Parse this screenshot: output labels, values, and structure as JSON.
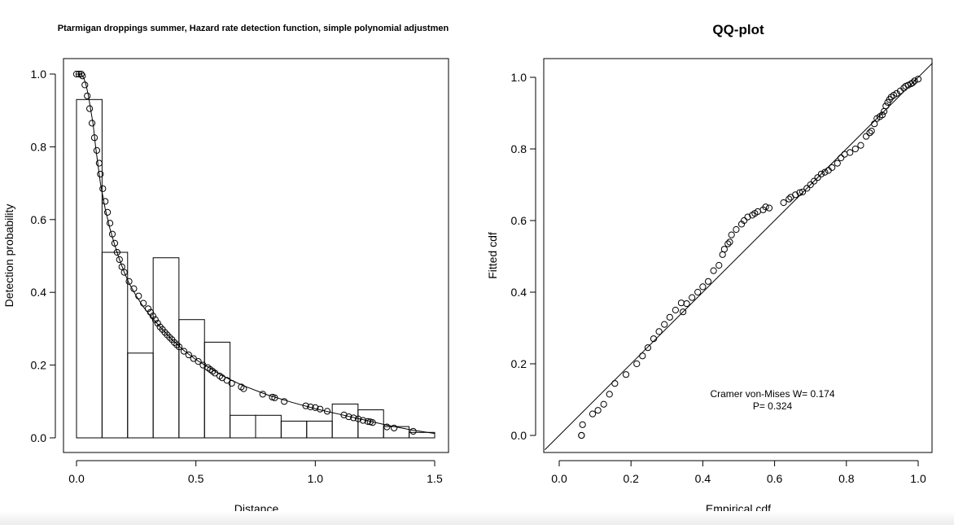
{
  "chart_data": [
    {
      "type": "bar",
      "title": "Ptarmigan droppings summer, Hazard rate detection function, simple polynomial adjustmen",
      "xlabel": "Distance",
      "ylabel": "Detection probability",
      "xlim": [
        0,
        1.5
      ],
      "ylim": [
        0,
        1.0
      ],
      "xticks": [
        "0.0",
        "0.5",
        "1.0",
        "1.5"
      ],
      "yticks": [
        "0.0",
        "0.2",
        "0.4",
        "0.6",
        "0.8",
        "1.0"
      ],
      "grid": false,
      "bins": [
        {
          "from": 0.0,
          "to": 0.107,
          "value": 0.93
        },
        {
          "from": 0.107,
          "to": 0.214,
          "value": 0.51
        },
        {
          "from": 0.214,
          "to": 0.321,
          "value": 0.233
        },
        {
          "from": 0.321,
          "to": 0.429,
          "value": 0.495
        },
        {
          "from": 0.429,
          "to": 0.536,
          "value": 0.325
        },
        {
          "from": 0.536,
          "to": 0.643,
          "value": 0.263
        },
        {
          "from": 0.643,
          "to": 0.75,
          "value": 0.062
        },
        {
          "from": 0.75,
          "to": 0.857,
          "value": 0.062
        },
        {
          "from": 0.857,
          "to": 0.964,
          "value": 0.046
        },
        {
          "from": 0.964,
          "to": 1.071,
          "value": 0.046
        },
        {
          "from": 1.071,
          "to": 1.179,
          "value": 0.093
        },
        {
          "from": 1.179,
          "to": 1.286,
          "value": 0.077
        },
        {
          "from": 1.286,
          "to": 1.393,
          "value": 0.031
        },
        {
          "from": 1.393,
          "to": 1.5,
          "value": 0.015
        }
      ],
      "fitted_curve": {
        "x": [
          0,
          0.02,
          0.03,
          0.04,
          0.05,
          0.06,
          0.07,
          0.08,
          0.09,
          0.1,
          0.12,
          0.14,
          0.16,
          0.18,
          0.2,
          0.22,
          0.25,
          0.28,
          0.31,
          0.35,
          0.4,
          0.45,
          0.5,
          0.55,
          0.6,
          0.65,
          0.7,
          0.8,
          0.9,
          1.0,
          1.1,
          1.2,
          1.3,
          1.4,
          1.5
        ],
        "y": [
          1.0,
          1.0,
          0.99,
          0.97,
          0.94,
          0.9,
          0.86,
          0.8,
          0.75,
          0.7,
          0.63,
          0.575,
          0.53,
          0.49,
          0.455,
          0.425,
          0.39,
          0.36,
          0.335,
          0.305,
          0.27,
          0.24,
          0.215,
          0.195,
          0.175,
          0.158,
          0.143,
          0.118,
          0.098,
          0.08,
          0.065,
          0.05,
          0.035,
          0.022,
          0.012
        ]
      },
      "points": {
        "x": [
          0.0,
          0.01,
          0.02,
          0.025,
          0.035,
          0.045,
          0.055,
          0.065,
          0.075,
          0.085,
          0.095,
          0.1,
          0.11,
          0.12,
          0.13,
          0.14,
          0.15,
          0.16,
          0.17,
          0.18,
          0.19,
          0.2,
          0.22,
          0.24,
          0.26,
          0.28,
          0.3,
          0.31,
          0.32,
          0.33,
          0.34,
          0.35,
          0.36,
          0.37,
          0.38,
          0.39,
          0.4,
          0.41,
          0.42,
          0.43,
          0.45,
          0.47,
          0.49,
          0.51,
          0.53,
          0.55,
          0.56,
          0.57,
          0.58,
          0.6,
          0.61,
          0.63,
          0.65,
          0.69,
          0.7,
          0.78,
          0.82,
          0.83,
          0.87,
          0.96,
          0.98,
          1.0,
          1.02,
          1.05,
          1.12,
          1.14,
          1.16,
          1.18,
          1.2,
          1.22,
          1.23,
          1.24,
          1.3,
          1.33,
          1.41
        ],
        "y": [
          1.0,
          1.0,
          1.0,
          0.995,
          0.97,
          0.94,
          0.905,
          0.865,
          0.825,
          0.79,
          0.755,
          0.725,
          0.685,
          0.65,
          0.62,
          0.59,
          0.56,
          0.535,
          0.51,
          0.49,
          0.47,
          0.455,
          0.43,
          0.41,
          0.39,
          0.37,
          0.355,
          0.345,
          0.335,
          0.325,
          0.315,
          0.305,
          0.298,
          0.29,
          0.283,
          0.276,
          0.27,
          0.262,
          0.256,
          0.25,
          0.238,
          0.228,
          0.218,
          0.21,
          0.2,
          0.193,
          0.188,
          0.183,
          0.178,
          0.17,
          0.165,
          0.158,
          0.15,
          0.14,
          0.135,
          0.12,
          0.112,
          0.11,
          0.1,
          0.088,
          0.085,
          0.083,
          0.079,
          0.073,
          0.063,
          0.058,
          0.055,
          0.052,
          0.048,
          0.045,
          0.044,
          0.042,
          0.03,
          0.027,
          0.018
        ]
      }
    },
    {
      "type": "scatter",
      "title": "QQ-plot",
      "xlabel": "Empirical cdf",
      "ylabel": "Fitted cdf",
      "xlim": [
        0,
        1.0
      ],
      "ylim": [
        0,
        1.0
      ],
      "xticks": [
        "0.0",
        "0.2",
        "0.4",
        "0.6",
        "0.8",
        "1.0"
      ],
      "yticks": [
        "0.0",
        "0.2",
        "0.4",
        "0.6",
        "0.8",
        "1.0"
      ],
      "grid": false,
      "reference_line": "y = x",
      "annotation": [
        "Cramer von-Mises W= 0.174",
        "P= 0.324"
      ],
      "points": {
        "x": [
          0.062,
          0.062,
          0.065,
          0.093,
          0.108,
          0.124,
          0.14,
          0.155,
          0.186,
          0.216,
          0.232,
          0.247,
          0.263,
          0.278,
          0.293,
          0.308,
          0.324,
          0.34,
          0.345,
          0.355,
          0.37,
          0.386,
          0.4,
          0.415,
          0.43,
          0.445,
          0.455,
          0.46,
          0.47,
          0.475,
          0.48,
          0.493,
          0.508,
          0.515,
          0.525,
          0.538,
          0.545,
          0.553,
          0.568,
          0.575,
          0.585,
          0.625,
          0.64,
          0.645,
          0.658,
          0.67,
          0.678,
          0.69,
          0.7,
          0.71,
          0.72,
          0.73,
          0.74,
          0.75,
          0.76,
          0.775,
          0.785,
          0.795,
          0.81,
          0.825,
          0.84,
          0.855,
          0.865,
          0.87,
          0.878,
          0.885,
          0.893,
          0.9,
          0.905,
          0.91,
          0.915,
          0.92,
          0.925,
          0.932,
          0.94,
          0.95,
          0.96,
          0.965,
          0.972,
          0.98,
          0.985,
          0.99,
          1.0
        ],
        "y": [
          0.0,
          0.0,
          0.03,
          0.06,
          0.07,
          0.087,
          0.115,
          0.145,
          0.17,
          0.2,
          0.222,
          0.245,
          0.27,
          0.29,
          0.31,
          0.33,
          0.35,
          0.37,
          0.345,
          0.368,
          0.385,
          0.4,
          0.415,
          0.43,
          0.46,
          0.475,
          0.505,
          0.52,
          0.535,
          0.54,
          0.56,
          0.575,
          0.59,
          0.6,
          0.61,
          0.615,
          0.62,
          0.625,
          0.63,
          0.638,
          0.635,
          0.65,
          0.66,
          0.665,
          0.672,
          0.678,
          0.68,
          0.69,
          0.7,
          0.71,
          0.72,
          0.73,
          0.735,
          0.74,
          0.748,
          0.76,
          0.775,
          0.785,
          0.79,
          0.8,
          0.81,
          0.835,
          0.845,
          0.85,
          0.87,
          0.885,
          0.89,
          0.895,
          0.905,
          0.92,
          0.93,
          0.938,
          0.945,
          0.95,
          0.955,
          0.962,
          0.97,
          0.975,
          0.978,
          0.982,
          0.985,
          0.99,
          0.995
        ]
      }
    }
  ]
}
